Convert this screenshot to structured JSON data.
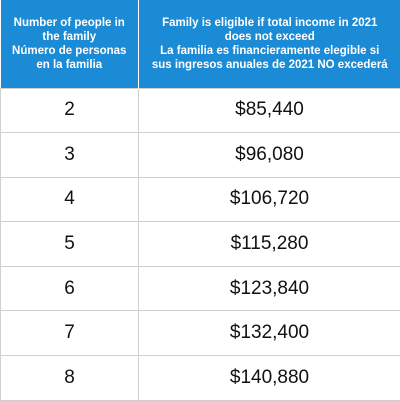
{
  "header": {
    "col1_lines": [
      "Number of people in",
      "the family",
      "Número de personas",
      "en la familia"
    ],
    "col2_lines": [
      "Family is eligible if total income in 2021",
      "does not exceed",
      "La familia es financieramente elegible si",
      "sus ingresos anuales de 2021 NO excederá"
    ]
  },
  "rows": [
    {
      "people": "2",
      "income": "$85,440"
    },
    {
      "people": "3",
      "income": "$96,080"
    },
    {
      "people": "4",
      "income": "$106,720"
    },
    {
      "people": "5",
      "income": "$115,280"
    },
    {
      "people": "6",
      "income": "$123,840"
    },
    {
      "people": "7",
      "income": "$132,400"
    },
    {
      "people": "8",
      "income": "$140,880"
    }
  ],
  "colors": {
    "header_bg": "#1b8bd6",
    "header_text": "#ffffff",
    "border": "#cfcfcf"
  }
}
